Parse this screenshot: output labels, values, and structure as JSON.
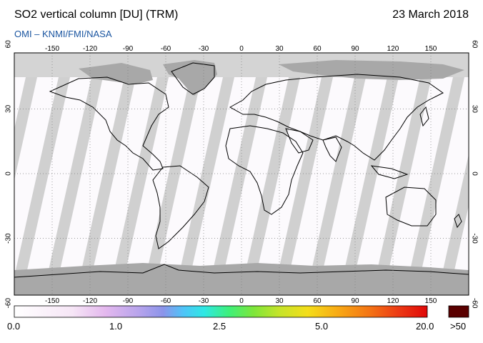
{
  "header": {
    "title": "SO2 vertical column [DU] (TRM)",
    "date": "23 March 2018",
    "credit": "OMI  –  KNMI/FMI/NASA"
  },
  "map": {
    "lon_ticks": [
      "-150",
      "-120",
      "-90",
      "-60",
      "-30",
      "0",
      "30",
      "60",
      "90",
      "120",
      "150"
    ],
    "lat_ticks": [
      "60",
      "30",
      "0",
      "-30",
      "-60"
    ],
    "colors": {
      "land_shadow": "#a8a8a8",
      "no_data": "#d4d4d4",
      "swath": "#fcfafd",
      "gap": "#a3a3a3",
      "coast": "#000000",
      "grid": "#7a7a7a"
    }
  },
  "colorbar": {
    "labels": [
      "0.0",
      "1.0",
      "2.5",
      "5.0",
      "20.0",
      ">50"
    ],
    "overflow_color": "#5a0000"
  }
}
